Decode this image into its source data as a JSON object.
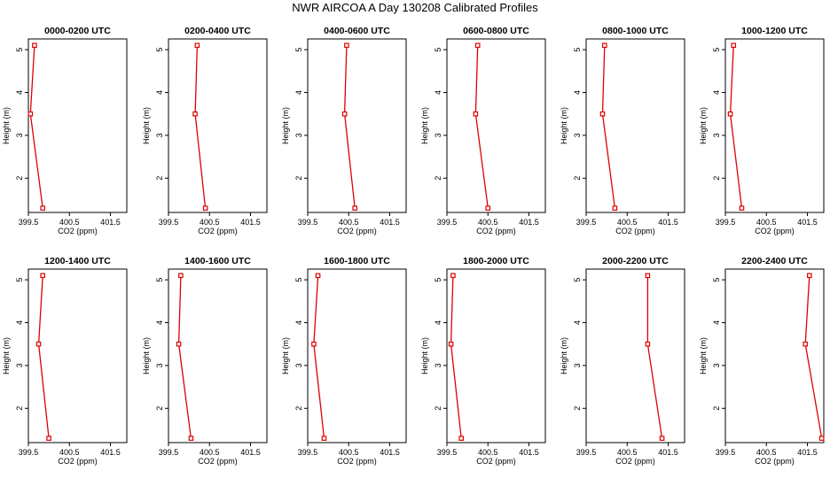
{
  "title": "NWR AIRCOA A  Day 130208  Calibrated Profiles",
  "chart_data": {
    "type": "line",
    "x_label": "CO2 (ppm)",
    "y_label": "Height (m)",
    "xlim": [
      399.5,
      401.9
    ],
    "ylim": [
      1.2,
      5.25
    ],
    "x_ticks": [
      "399.5",
      "400.5",
      "401.5"
    ],
    "y_ticks": [
      "2",
      "3",
      "4",
      "5"
    ],
    "series_color": "#dd0000",
    "panels": [
      {
        "title": "0000-0200 UTC",
        "co2": [
          399.65,
          399.55,
          399.85
        ],
        "height": [
          5.1,
          3.5,
          1.3
        ]
      },
      {
        "title": "0200-0400 UTC",
        "co2": [
          400.2,
          400.15,
          400.4
        ],
        "height": [
          5.1,
          3.5,
          1.3
        ]
      },
      {
        "title": "0400-0600 UTC",
        "co2": [
          400.45,
          400.4,
          400.65
        ],
        "height": [
          5.1,
          3.5,
          1.3
        ]
      },
      {
        "title": "0600-0800 UTC",
        "co2": [
          400.25,
          400.2,
          400.5
        ],
        "height": [
          5.1,
          3.5,
          1.3
        ]
      },
      {
        "title": "0800-1000 UTC",
        "co2": [
          399.95,
          399.9,
          400.2
        ],
        "height": [
          5.1,
          3.5,
          1.3
        ]
      },
      {
        "title": "1000-1200 UTC",
        "co2": [
          399.7,
          399.62,
          399.9
        ],
        "height": [
          5.1,
          3.5,
          1.3
        ]
      },
      {
        "title": "1200-1400 UTC",
        "co2": [
          399.85,
          399.75,
          400.0
        ],
        "height": [
          5.1,
          3.5,
          1.3
        ]
      },
      {
        "title": "1400-1600 UTC",
        "co2": [
          399.8,
          399.75,
          400.05
        ],
        "height": [
          5.1,
          3.5,
          1.3
        ]
      },
      {
        "title": "1600-1800 UTC",
        "co2": [
          399.75,
          399.65,
          399.9
        ],
        "height": [
          5.1,
          3.5,
          1.3
        ]
      },
      {
        "title": "1800-2000 UTC",
        "co2": [
          399.65,
          399.6,
          399.85
        ],
        "height": [
          5.1,
          3.5,
          1.3
        ]
      },
      {
        "title": "2000-2200 UTC",
        "co2": [
          401.0,
          401.0,
          401.35
        ],
        "height": [
          5.1,
          3.5,
          1.3
        ]
      },
      {
        "title": "2200-2400 UTC",
        "co2": [
          401.55,
          401.45,
          401.85
        ],
        "height": [
          5.1,
          3.5,
          1.3
        ]
      }
    ]
  }
}
